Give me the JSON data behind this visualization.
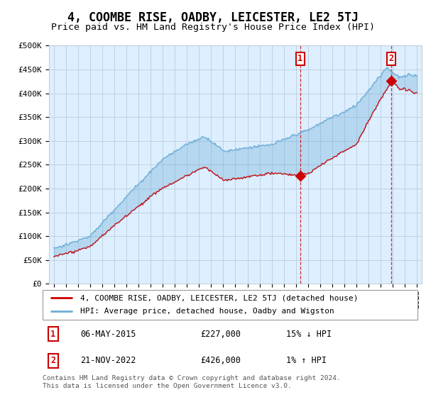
{
  "title": "4, COOMBE RISE, OADBY, LEICESTER, LE2 5TJ",
  "subtitle": "Price paid vs. HM Land Registry's House Price Index (HPI)",
  "ylim": [
    0,
    500000
  ],
  "yticks": [
    0,
    50000,
    100000,
    150000,
    200000,
    250000,
    300000,
    350000,
    400000,
    450000,
    500000
  ],
  "ytick_labels": [
    "£0",
    "£50K",
    "£100K",
    "£150K",
    "£200K",
    "£250K",
    "£300K",
    "£350K",
    "£400K",
    "£450K",
    "£500K"
  ],
  "xlim_start": 1994.6,
  "xlim_end": 2025.4,
  "sale1_date": 2015.35,
  "sale1_price": 227000,
  "sale1_label": "1",
  "sale2_date": 2022.89,
  "sale2_price": 426000,
  "sale2_label": "2",
  "legend_line1": "4, COOMBE RISE, OADBY, LEICESTER, LE2 5TJ (detached house)",
  "legend_line2": "HPI: Average price, detached house, Oadby and Wigston",
  "table_row1": [
    "1",
    "06-MAY-2015",
    "£227,000",
    "15% ↓ HPI"
  ],
  "table_row2": [
    "2",
    "21-NOV-2022",
    "£426,000",
    "1% ↑ HPI"
  ],
  "footnote": "Contains HM Land Registry data © Crown copyright and database right 2024.\nThis data is licensed under the Open Government Licence v3.0.",
  "hpi_color": "#6baed6",
  "sale_color": "#cc0000",
  "background_color": "#ddeeff",
  "grid_color": "#bbccdd",
  "title_fontsize": 12,
  "subtitle_fontsize": 9.5,
  "tick_fontsize": 8
}
